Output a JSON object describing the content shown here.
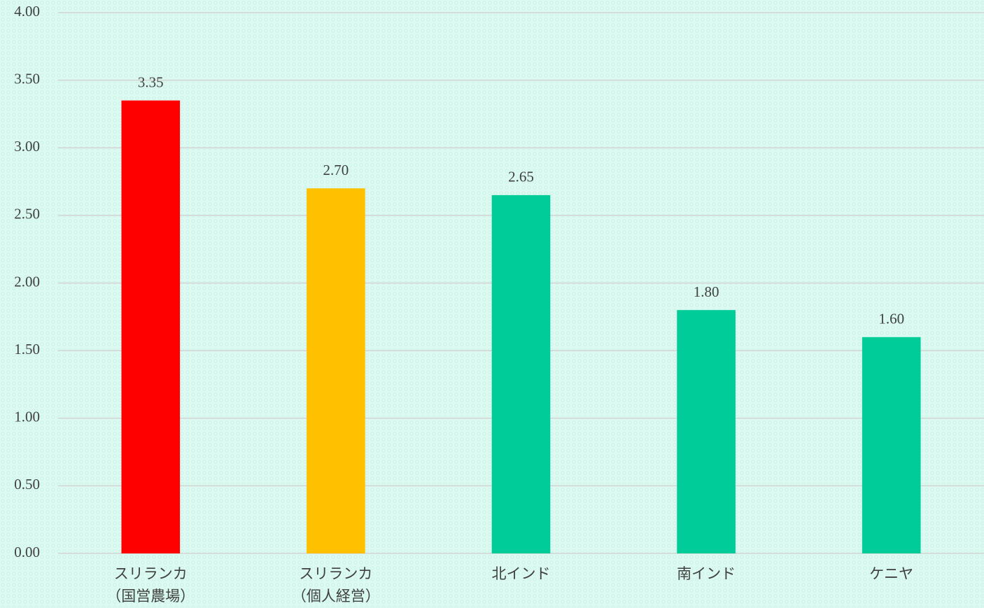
{
  "chart_data": {
    "type": "bar",
    "categories": [
      [
        "スリランカ",
        "（国営農場）"
      ],
      [
        "スリランカ",
        "（個人経営）"
      ],
      [
        "北インド"
      ],
      [
        "南インド"
      ],
      [
        "ケニヤ"
      ]
    ],
    "values": [
      3.35,
      2.7,
      2.65,
      1.8,
      1.6
    ],
    "value_labels": [
      "3.35",
      "2.70",
      "2.65",
      "1.80",
      "1.60"
    ],
    "colors": [
      "#ff0000",
      "#ffc000",
      "#00cc99",
      "#00cc99",
      "#00cc99"
    ],
    "ylim": [
      0,
      4
    ],
    "yticks": [
      {
        "value": 0,
        "label": "0.00"
      },
      {
        "value": 0.5,
        "label": "0.50"
      },
      {
        "value": 1,
        "label": "1.00"
      },
      {
        "value": 1.5,
        "label": "1.50"
      },
      {
        "value": 2,
        "label": "2.00"
      },
      {
        "value": 2.5,
        "label": "2.50"
      },
      {
        "value": 3,
        "label": "3.00"
      },
      {
        "value": 3.5,
        "label": "3.50"
      },
      {
        "value": 4,
        "label": "4.00"
      }
    ],
    "grid": true
  }
}
